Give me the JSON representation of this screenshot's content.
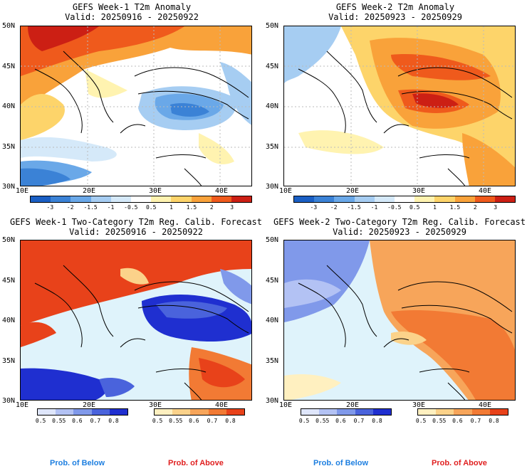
{
  "panels": [
    {
      "title": "GEFS Week-1 T2m Anomaly",
      "valid": "Valid: 20250916 - 20250922"
    },
    {
      "title": "GEFS Week-2 T2m Anomaly",
      "valid": "Valid: 20250923 - 20250929"
    },
    {
      "title": "GEFS Week-1 Two-Category T2m Reg. Calib. Forecast",
      "valid": "Valid: 20250916 - 20250922"
    },
    {
      "title": "GEFS Week-2 Two-Category T2m Reg. Calib. Forecast",
      "valid": "Valid: 20250923 - 20250929"
    }
  ],
  "axes": {
    "lat": [
      "50N",
      "45N",
      "40N",
      "35N",
      "30N"
    ],
    "lon": [
      "10E",
      "20E",
      "30E",
      "40E"
    ]
  },
  "anomaly_colorbar": {
    "labels": [
      "-3",
      "-2",
      "-1.5",
      "-1",
      "-0.5",
      "0.5",
      "1",
      "1.5",
      "2",
      "3"
    ],
    "colors": [
      "#1a5fc4",
      "#3b82d6",
      "#6aa8e8",
      "#a6cdf2",
      "#d5e9f9",
      "#ffffff",
      "#fff3b0",
      "#fdd46a",
      "#f9a23a",
      "#ef5a1c",
      "#cc1f14"
    ]
  },
  "prob_colorbar": {
    "labels": [
      "0.5",
      "0.55",
      "0.6",
      "0.7",
      "0.8"
    ],
    "below_colors": [
      "#dfe6fb",
      "#b3c2f4",
      "#8099ea",
      "#4a63dc",
      "#1f2fd0"
    ],
    "above_colors": [
      "#fff0c0",
      "#fbd28a",
      "#f7a55a",
      "#f27a34",
      "#e8421a"
    ]
  },
  "legend": {
    "below": "Prob. of Below",
    "above": "Prob. of Above",
    "below_color": "#1e7fe0",
    "above_color": "#e02020"
  }
}
